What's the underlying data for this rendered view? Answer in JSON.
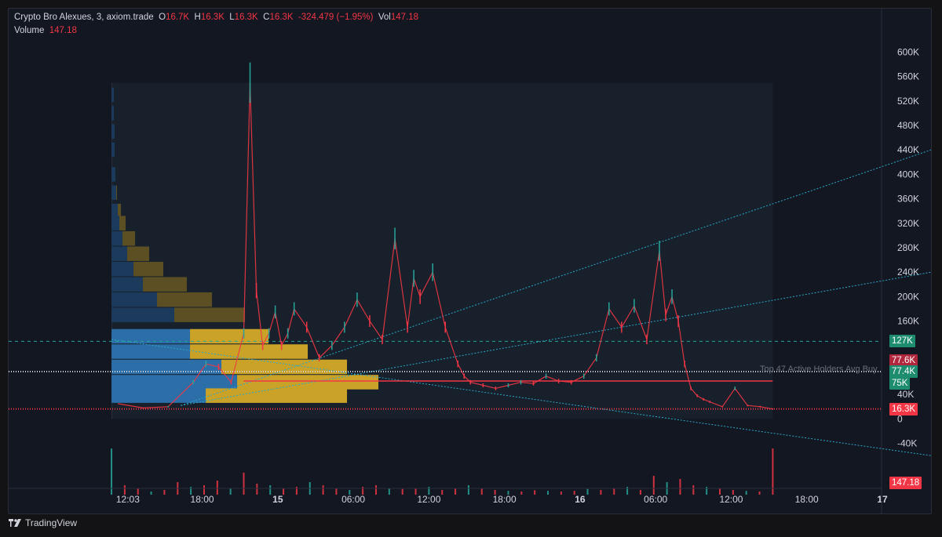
{
  "header": {
    "symbol": "Crypto Bro Alexues, 3, axiom.trade",
    "o_label": "O",
    "o_value": "16.7K",
    "h_label": "H",
    "h_value": "16.3K",
    "l_label": "L",
    "l_value": "16.3K",
    "c_label": "C",
    "c_value": "16.3K",
    "change": "-324.479 (−1.95%)",
    "vol_label": "Vol",
    "vol_value": "147.18"
  },
  "volume_row": {
    "label": "Volume",
    "value": "147.18"
  },
  "annotation": "Top 47 Active Holders Avg Buy",
  "footer": {
    "brand": "TradingView"
  },
  "colors": {
    "up": "#26a69a",
    "down": "#f23645",
    "profile_blue": "#2b6ea8",
    "profile_yellow": "#c9a227",
    "trend": "#2aa7c8",
    "hline": "#f23645"
  },
  "chart_data": {
    "type": "line",
    "title": "",
    "xlabel": "",
    "ylabel": "",
    "ylim": [
      -70000,
      630000
    ],
    "y_ticks": [
      "600K",
      "560K",
      "520K",
      "480K",
      "440K",
      "400K",
      "360K",
      "320K",
      "280K",
      "240K",
      "200K",
      "160K",
      "40K",
      "0",
      "-40K"
    ],
    "x_ticks": [
      {
        "label": "12:03",
        "bold": false,
        "t": 0.8
      },
      {
        "label": "18:00",
        "bold": false,
        "t": 6.7
      },
      {
        "label": "15",
        "bold": true,
        "t": 12.7
      },
      {
        "label": "06:00",
        "bold": false,
        "t": 18.7
      },
      {
        "label": "12:00",
        "bold": false,
        "t": 24.7
      },
      {
        "label": "18:00",
        "bold": false,
        "t": 30.7
      },
      {
        "label": "16",
        "bold": true,
        "t": 36.7
      },
      {
        "label": "06:00",
        "bold": false,
        "t": 42.7
      },
      {
        "label": "12:00",
        "bold": false,
        "t": 48.7
      },
      {
        "label": "18:00",
        "bold": false,
        "t": 54.7
      },
      {
        "label": "17",
        "bold": true,
        "t": 60.7
      }
    ],
    "price_series": {
      "name": "",
      "x": [
        0,
        2,
        4,
        6,
        7,
        8,
        9,
        10,
        10.5,
        11,
        11.5,
        12,
        12.5,
        13,
        13.5,
        14,
        15,
        16,
        17,
        18,
        19,
        20,
        21,
        22,
        23,
        23.5,
        24,
        25,
        26,
        27,
        27.5,
        28,
        29,
        30,
        31,
        32,
        33,
        34,
        35,
        36,
        37,
        38,
        39,
        40,
        41,
        42,
        43,
        43.5,
        44,
        44.5,
        45,
        45.5,
        46,
        46.5,
        47,
        48,
        49,
        50,
        51,
        52
      ],
      "y": [
        25000,
        18000,
        20000,
        60000,
        90000,
        85000,
        60000,
        140000,
        550000,
        210000,
        120000,
        140000,
        175000,
        120000,
        140000,
        180000,
        150000,
        100000,
        120000,
        150000,
        195000,
        160000,
        130000,
        295000,
        150000,
        230000,
        200000,
        240000,
        150000,
        90000,
        70000,
        60000,
        55000,
        50000,
        55000,
        60000,
        58000,
        70000,
        62000,
        60000,
        70000,
        100000,
        180000,
        150000,
        185000,
        130000,
        275000,
        170000,
        200000,
        160000,
        90000,
        50000,
        38000,
        32000,
        28000,
        20000,
        50000,
        22000,
        20000,
        16300
      ]
    },
    "volume_series": {
      "name": "",
      "values": [
        147,
        30,
        20,
        10,
        15,
        40,
        25,
        30,
        45,
        20,
        70,
        35,
        30,
        20,
        25,
        40,
        30,
        20,
        15,
        25,
        30,
        20,
        18,
        20,
        25,
        15,
        20,
        30,
        20,
        15,
        12,
        10,
        14,
        12,
        10,
        12,
        18,
        15,
        20,
        25,
        15,
        60,
        40,
        50,
        30,
        25,
        20,
        15,
        12,
        10,
        147.18
      ]
    },
    "horizontal_lines": [
      {
        "value": 127000,
        "label": "127K",
        "style": "dashed",
        "color": "#26a69a"
      },
      {
        "value": 77600,
        "label": "77.6K",
        "style": "badge",
        "color": "#b2263d"
      },
      {
        "value": 77400,
        "label": "77.4K",
        "style": "dotted",
        "color": "#d1d4dc"
      },
      {
        "value": 75000,
        "label": "75K",
        "style": "badge",
        "color": "#26a69a"
      },
      {
        "value": 62000,
        "label": "",
        "style": "solid",
        "color": "#f23645"
      },
      {
        "value": 16300,
        "label": "16.3K",
        "style": "dotted",
        "color": "#f23645"
      }
    ],
    "volume_badge": "147.18"
  }
}
